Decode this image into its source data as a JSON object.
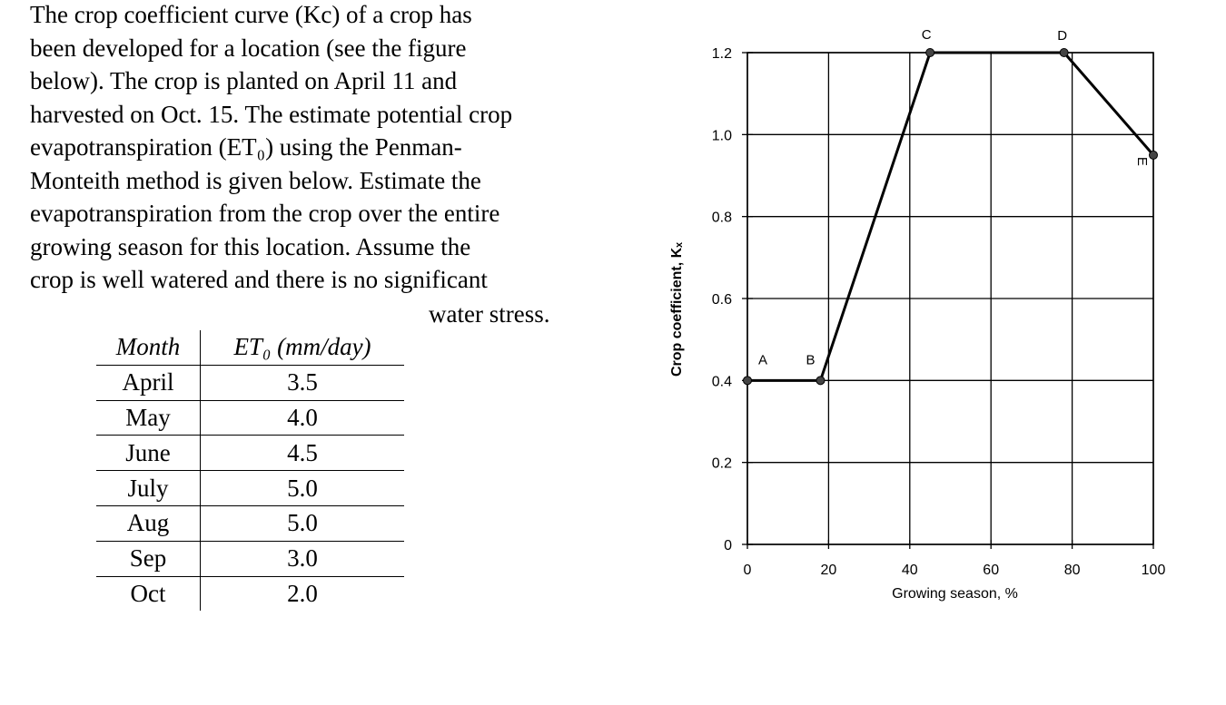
{
  "problem": {
    "lines": [
      "The crop coefficient curve (Kc) of a crop has",
      "been developed for a location (see the figure",
      "below). The crop is planted on April 11 and",
      "harvested on Oct. 15. The estimate potential crop",
      "evapotranspiration (ET₀) using the Penman-",
      "Monteith method is given below. Estimate the",
      "evapotranspiration from the crop over the entire",
      "growing season for this location. Assume the",
      "crop is well watered and there is no significant",
      "water stress."
    ]
  },
  "table": {
    "headers": [
      "Month",
      "ET₀ (mm/day)"
    ],
    "rows": [
      [
        "April",
        "3.5"
      ],
      [
        "May",
        "4.0"
      ],
      [
        "June",
        "4.5"
      ],
      [
        "July",
        "5.0"
      ],
      [
        "Aug",
        "5.0"
      ],
      [
        "Sep",
        "3.0"
      ],
      [
        "Oct",
        "2.0"
      ]
    ]
  },
  "chart_data": {
    "type": "line",
    "xlabel": "Growing season, %",
    "ylabel": "Crop coefficient, Kₓ",
    "xlim": [
      0,
      100
    ],
    "ylim": [
      0,
      1.2
    ],
    "xticks": [
      "0",
      "20",
      "40",
      "60",
      "80",
      "100"
    ],
    "yticks": [
      "0",
      "0.2",
      "0.4",
      "0.6",
      "0.8",
      "1.0",
      "1.2"
    ],
    "grid": true,
    "points": [
      {
        "label": "A",
        "x": 0,
        "y": 0.4
      },
      {
        "label": "B",
        "x": 18,
        "y": 0.4
      },
      {
        "label": "C",
        "x": 45,
        "y": 1.2
      },
      {
        "label": "D",
        "x": 78,
        "y": 1.2
      },
      {
        "label": "E",
        "x": 100,
        "y": 0.95
      }
    ]
  }
}
